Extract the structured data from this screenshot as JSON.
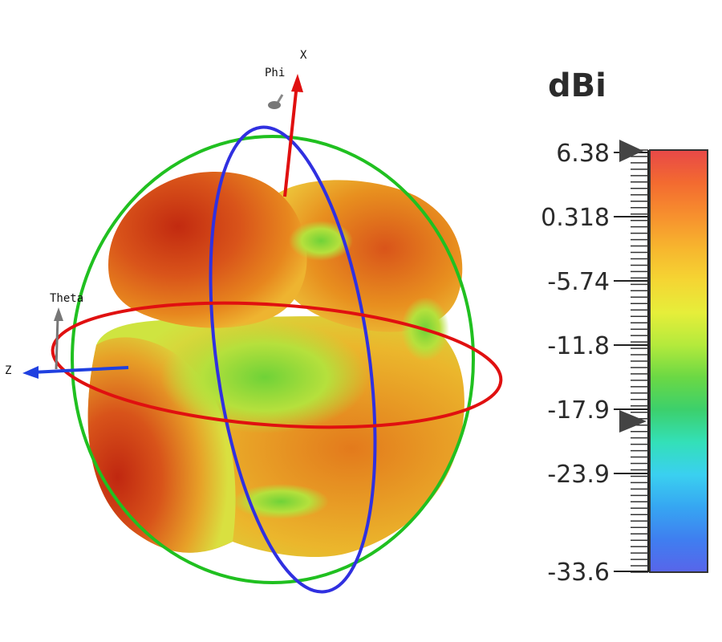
{
  "scale": {
    "unit": "dBi",
    "max": 6.38,
    "min": -33.6,
    "tick_labels": [
      "6.38",
      "0.318",
      "-5.74",
      "-11.8",
      "-17.9",
      "-23.9",
      "-33.6"
    ],
    "lower_marker_value": -19.0
  },
  "axes": {
    "x_label": "X",
    "z_label": "Z",
    "phi_label": "Phi",
    "theta_label": "Theta"
  },
  "colors": {
    "x_axis": "#e01010",
    "z_axis": "#2040e0",
    "theta_ring": "#e01010",
    "phi_ring_blue": "#3030e0",
    "phi_ring_green": "#20c020",
    "pattern_high": "#c92a10",
    "pattern_mid": "#e08a18",
    "pattern_low": "#7fd030",
    "marker": "#444444"
  },
  "colormap": [
    "#e84848",
    "#f36a30",
    "#f78f2e",
    "#f7b52e",
    "#f5d533",
    "#e6ee3a",
    "#b4ea3c",
    "#6bd844",
    "#3cd06c",
    "#33e0b8",
    "#3ad0f0",
    "#36a6f2",
    "#3f7ef0",
    "#5865ea"
  ]
}
